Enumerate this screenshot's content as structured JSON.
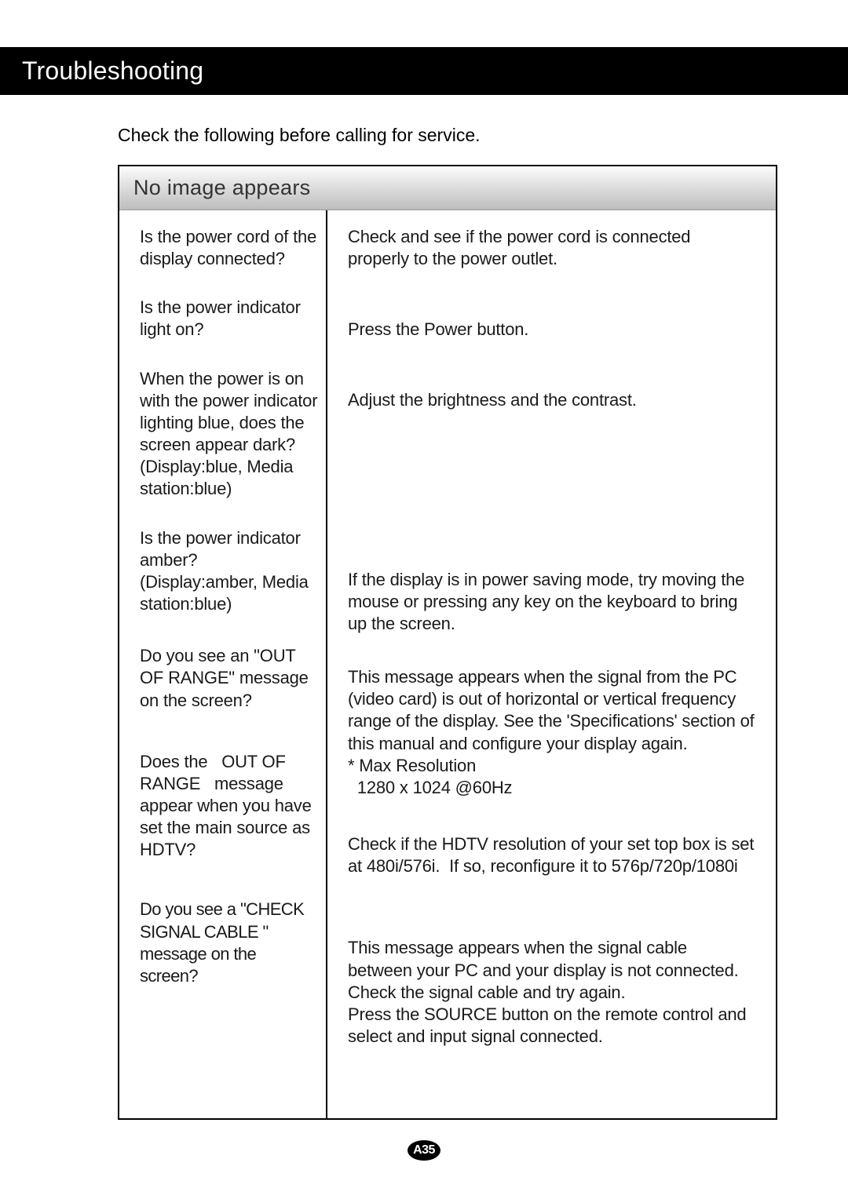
{
  "header": {
    "title": "Troubleshooting"
  },
  "intro": "Check the following before calling for service.",
  "panel": {
    "title": "No image appears",
    "rows": [
      {
        "question": "Is the power cord of the display connected?",
        "answer": "Check and see if the power cord is connected properly to the power outlet."
      },
      {
        "question": "Is the power indicator light on?",
        "answer": "Press the Power button."
      },
      {
        "question": "When the power is on with the power indicator lighting blue, does the screen appear dark?\n(Display:blue, Media station:blue)",
        "answer": "Adjust the brightness and the contrast."
      },
      {
        "question": "Is the power indicator amber?\n(Display:amber, Media station:blue)",
        "answer": "If the display is in power saving mode, try moving the mouse or pressing any key on the keyboard to bring up the screen."
      },
      {
        "question": "Do you see an \"OUT OF RANGE\" message on the screen?",
        "answer": "This message appears when the signal from the PC (video card) is out of horizontal or vertical frequency range of the display. See the 'Specifications' section of this manual and configure your display again.\n* Max Resolution\n  1280 x 1024 @60Hz"
      },
      {
        "question": "Does the   OUT OF RANGE   message appear when you have set the main source as HDTV?",
        "answer": "Check if the HDTV resolution of your set top box is set at 480i/576i.  If so, reconfigure it to 576p/720p/1080i"
      },
      {
        "question": "Do you see a \"CHECK SIGNAL CABLE \" message on the screen?",
        "answer": "This message appears when the signal cable between your PC and your display is not connected. Check the signal cable and try again.\nPress the SOURCE button on the remote control and select and input signal connected."
      }
    ]
  },
  "pageNumber": "A35",
  "style": {
    "titleBarBg": "#000000",
    "titleBarFg": "#ffffff",
    "panelBorder": "#000000",
    "panelHeaderGradientTop": "#fdfdfd",
    "panelHeaderGradientBottom": "#bdbdbd",
    "bodyFontSize": 22,
    "titleFontSize": 32,
    "panelHeaderFontSize": 27
  }
}
